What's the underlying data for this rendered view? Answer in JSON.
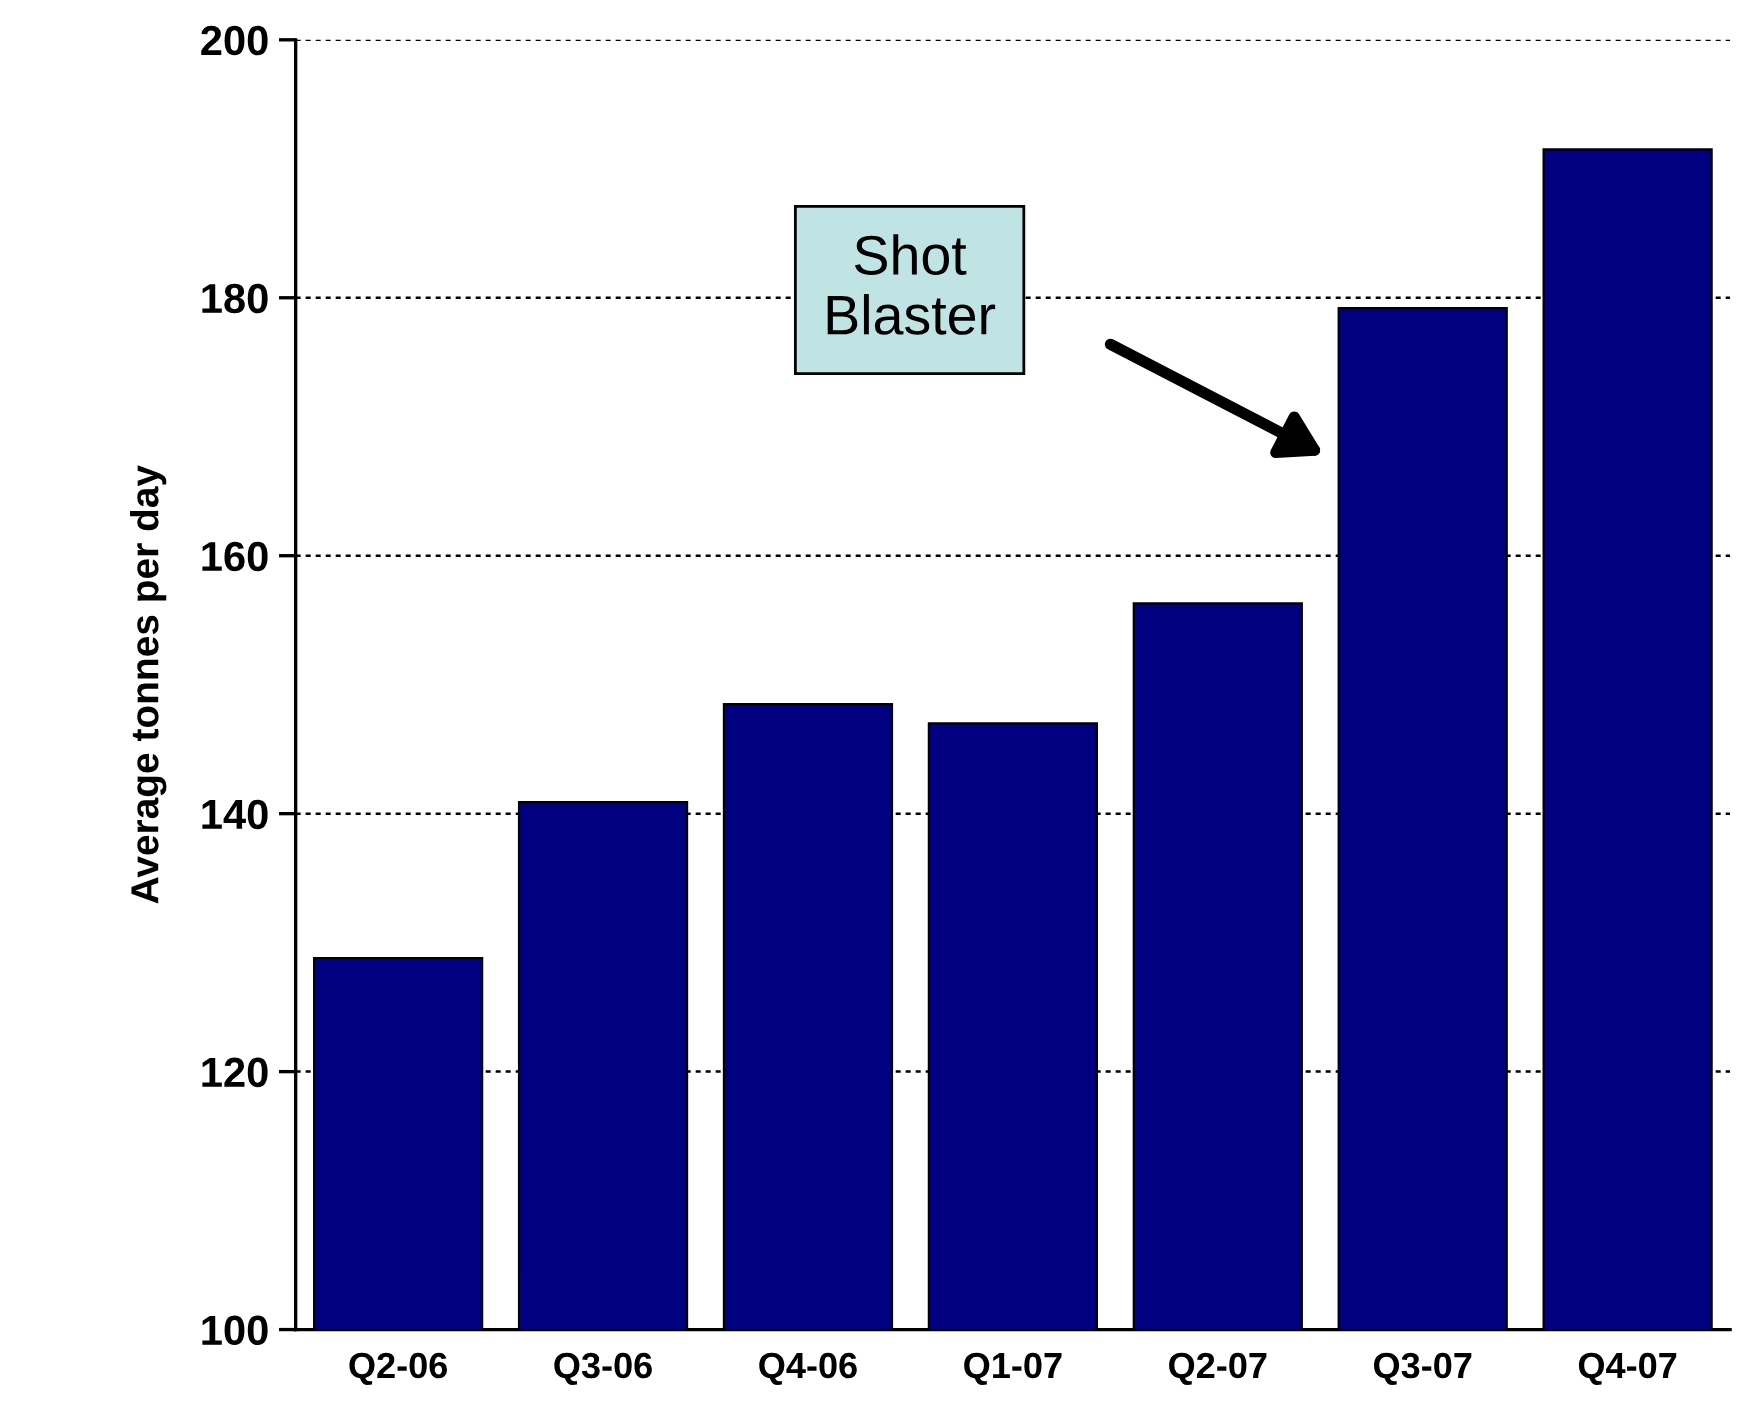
{
  "chart_data": {
    "type": "bar",
    "ylabel": "Average tonnes per day",
    "categories": [
      "Q2-06",
      "Q3-06",
      "Q4-06",
      "Q1-07",
      "Q2-07",
      "Q3-07",
      "Q4-07"
    ],
    "values": [
      128.8,
      140.9,
      148.5,
      147.0,
      156.3,
      179.2,
      191.5
    ],
    "color": "#000080",
    "ylim": [
      100,
      200
    ],
    "yticks": [
      100,
      120,
      140,
      160,
      180,
      200
    ],
    "grid": "y",
    "annotations": [
      "Shot\nBlaster"
    ]
  }
}
